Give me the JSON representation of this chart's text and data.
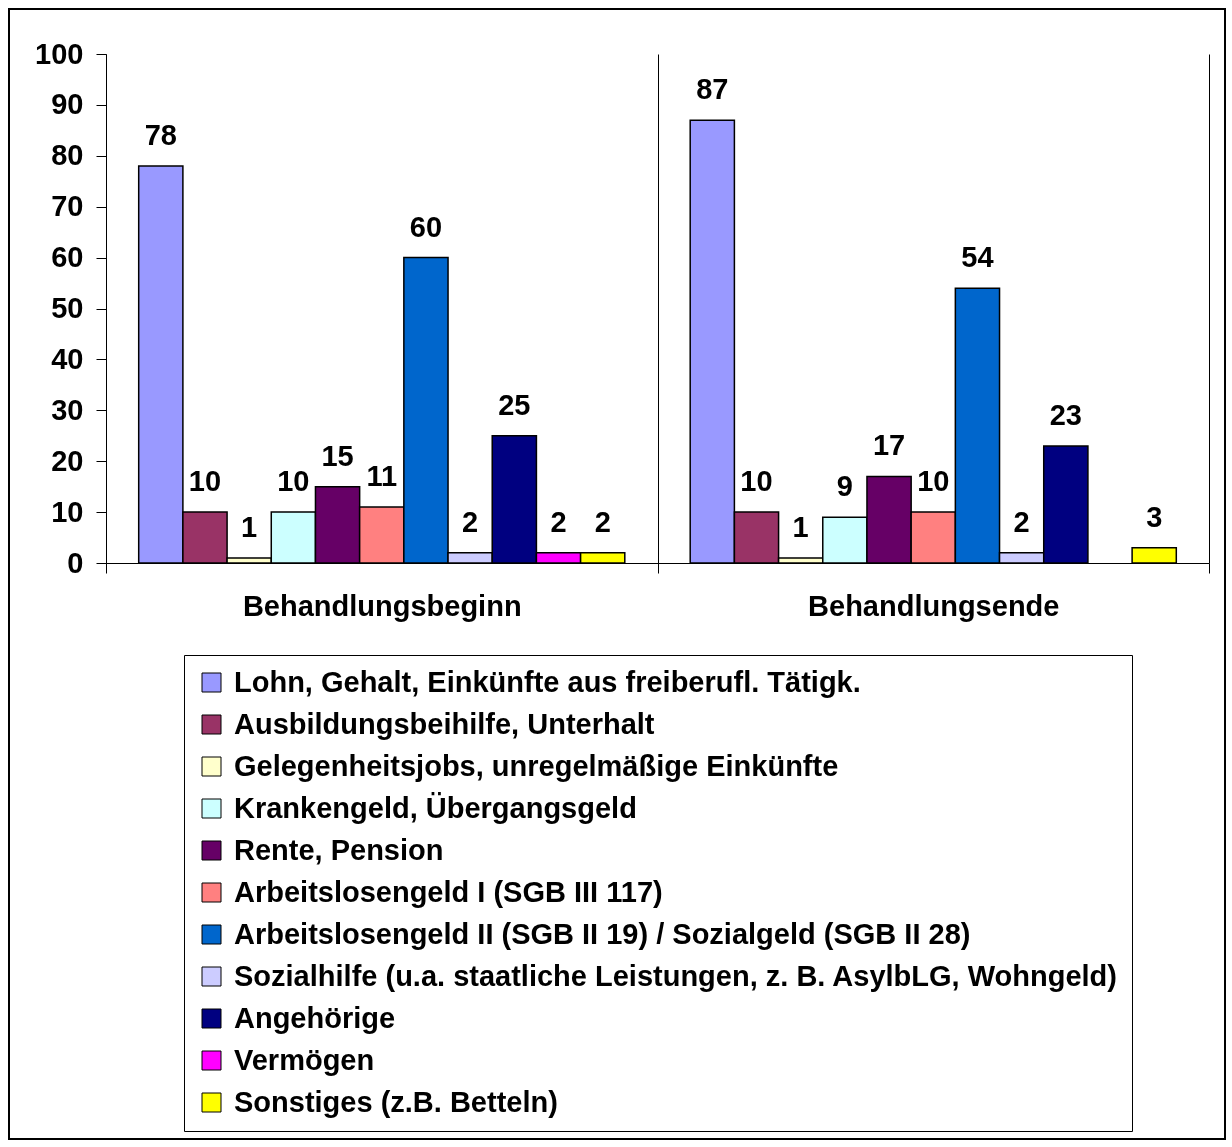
{
  "chart_data": {
    "type": "bar",
    "categories": [
      "Behandlungsbeginn",
      "Behandlungsende"
    ],
    "series": [
      {
        "name": "Lohn, Gehalt, Einkünfte aus freiberufl. Tätigk.",
        "color": "#9999ff",
        "values": [
          78,
          87
        ]
      },
      {
        "name": "Ausbildungsbeihilfe, Unterhalt",
        "color": "#993366",
        "values": [
          10,
          10
        ]
      },
      {
        "name": "Gelegenheitsjobs, unregelmäßige Einkünfte",
        "color": "#ffffcc",
        "values": [
          1,
          1
        ]
      },
      {
        "name": "Krankengeld, Übergangsgeld",
        "color": "#ccffff",
        "values": [
          10,
          9
        ]
      },
      {
        "name": "Rente, Pension",
        "color": "#660066",
        "values": [
          15,
          17
        ]
      },
      {
        "name": "Arbeitslosengeld I (SGB III 117)",
        "color": "#ff8080",
        "values": [
          11,
          10
        ]
      },
      {
        "name": "Arbeitslosengeld II (SGB II 19) / Sozialgeld (SGB II 28)",
        "color": "#0066cc",
        "values": [
          60,
          54
        ]
      },
      {
        "name": "Sozialhilfe (u.a. staatliche Leistungen, z. B. AsylbLG, Wohngeld)",
        "color": "#ccccff",
        "values": [
          2,
          2
        ]
      },
      {
        "name": "Angehörige",
        "color": "#000080",
        "values": [
          25,
          23
        ]
      },
      {
        "name": "Vermögen",
        "color": "#ff00ff",
        "values": [
          2,
          null
        ]
      },
      {
        "name": "Sonstiges (z.B. Betteln)",
        "color": "#ffff00",
        "values": [
          2,
          3
        ]
      }
    ],
    "ylim": [
      0,
      100
    ],
    "yticks": [
      0,
      10,
      20,
      30,
      40,
      50,
      60,
      70,
      80,
      90,
      100
    ],
    "grid": "x",
    "legend": "bottom",
    "data_labels": true
  }
}
